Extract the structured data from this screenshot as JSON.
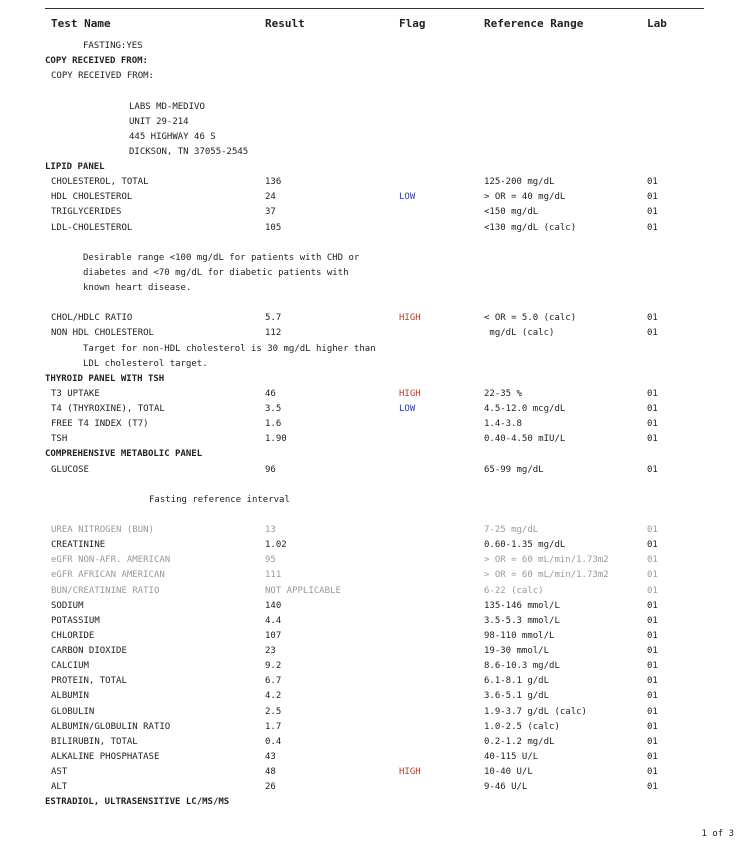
{
  "header": {
    "test_name": "Test Name",
    "result": "Result",
    "flag": "Flag",
    "reference_range": "Reference Range",
    "lab": "Lab"
  },
  "colors": {
    "high": "#c0392b",
    "low": "#2c3ea8",
    "faded": "#999999"
  },
  "rows": [
    {
      "type": "note",
      "text": "FASTING:YES"
    },
    {
      "type": "section",
      "text": "COPY RECEIVED FROM:"
    },
    {
      "type": "test",
      "name": "COPY RECEIVED FROM:"
    },
    {
      "type": "blank"
    },
    {
      "type": "addr",
      "text": "LABS MD-MEDIVO"
    },
    {
      "type": "addr",
      "text": "UNIT 29-214"
    },
    {
      "type": "addr",
      "text": "445 HIGHWAY 46 S"
    },
    {
      "type": "addr",
      "text": "DICKSON, TN 37055-2545"
    },
    {
      "type": "section",
      "text": "LIPID PANEL"
    },
    {
      "type": "test",
      "name": "CHOLESTEROL, TOTAL",
      "result": "136",
      "flag": "",
      "range": "125-200 mg/dL",
      "lab": "01"
    },
    {
      "type": "test",
      "name": "HDL CHOLESTEROL",
      "result": "24",
      "flag": "LOW",
      "range": "> OR = 40 mg/dL",
      "lab": "01"
    },
    {
      "type": "test",
      "name": "TRIGLYCERIDES",
      "result": "37",
      "flag": "",
      "range": "<150 mg/dL",
      "lab": "01"
    },
    {
      "type": "test",
      "name": "LDL-CHOLESTEROL",
      "result": "105",
      "flag": "",
      "range": "<130 mg/dL (calc)",
      "lab": "01"
    },
    {
      "type": "blank"
    },
    {
      "type": "note",
      "text": "Desirable range <100 mg/dL for patients with CHD or"
    },
    {
      "type": "note",
      "text": "diabetes and <70 mg/dL for diabetic patients with"
    },
    {
      "type": "note",
      "text": "known heart disease."
    },
    {
      "type": "blank"
    },
    {
      "type": "test",
      "name": "CHOL/HDLC RATIO",
      "result": "5.7",
      "flag": "HIGH",
      "range": "< OR = 5.0 (calc)",
      "lab": "01"
    },
    {
      "type": "test",
      "name": "NON HDL CHOLESTEROL",
      "result": "112",
      "flag": "",
      "range": " mg/dL (calc)",
      "lab": "01"
    },
    {
      "type": "note",
      "text": "Target for non-HDL cholesterol is 30 mg/dL higher than"
    },
    {
      "type": "note",
      "text": "LDL cholesterol target."
    },
    {
      "type": "section",
      "text": "THYROID PANEL WITH TSH"
    },
    {
      "type": "test",
      "name": "T3 UPTAKE",
      "result": "46",
      "flag": "HIGH",
      "range": "22-35 %",
      "lab": "01"
    },
    {
      "type": "test",
      "name": "T4 (THYROXINE), TOTAL",
      "result": "3.5",
      "flag": "LOW",
      "range": "4.5-12.0 mcg/dL",
      "lab": "01"
    },
    {
      "type": "test",
      "name": "FREE T4 INDEX (T7)",
      "result": "1.6",
      "flag": "",
      "range": "1.4-3.8",
      "lab": "01"
    },
    {
      "type": "test",
      "name": "TSH",
      "result": "1.90",
      "flag": "",
      "range": "0.40-4.50 mIU/L",
      "lab": "01"
    },
    {
      "type": "section",
      "text": "COMPREHENSIVE METABOLIC PANEL"
    },
    {
      "type": "test",
      "name": "GLUCOSE",
      "result": "96",
      "flag": "",
      "range": "65-99 mg/dL",
      "lab": "01"
    },
    {
      "type": "blank"
    },
    {
      "type": "ref",
      "text": "Fasting reference interval"
    },
    {
      "type": "blank"
    },
    {
      "type": "test",
      "faded": true,
      "name": "UREA NITROGEN (BUN)",
      "result": "13",
      "flag": "",
      "range": "7-25 mg/dL",
      "lab": "01"
    },
    {
      "type": "test",
      "name": "CREATININE",
      "result": "1.02",
      "flag": "",
      "range": "0.60-1.35 mg/dL",
      "lab": "01"
    },
    {
      "type": "test",
      "faded": true,
      "name": "eGFR NON-AFR. AMERICAN",
      "result": "95",
      "flag": "",
      "range": "> OR = 60 mL/min/1.73m2",
      "lab": "01"
    },
    {
      "type": "test",
      "faded": true,
      "name": "eGFR AFRICAN AMERICAN",
      "result": "111",
      "flag": "",
      "range": "> OR = 60 mL/min/1.73m2",
      "lab": "01"
    },
    {
      "type": "test",
      "faded": true,
      "name": "BUN/CREATININE RATIO",
      "result": "NOT APPLICABLE",
      "flag": "",
      "range": "6-22 (calc)",
      "lab": "01"
    },
    {
      "type": "test",
      "name": "SODIUM",
      "result": "140",
      "flag": "",
      "range": "135-146 mmol/L",
      "lab": "01"
    },
    {
      "type": "test",
      "name": "POTASSIUM",
      "result": "4.4",
      "flag": "",
      "range": "3.5-5.3 mmol/L",
      "lab": "01"
    },
    {
      "type": "test",
      "name": "CHLORIDE",
      "result": "107",
      "flag": "",
      "range": "98-110 mmol/L",
      "lab": "01"
    },
    {
      "type": "test",
      "name": "CARBON DIOXIDE",
      "result": "23",
      "flag": "",
      "range": "19-30 mmol/L",
      "lab": "01"
    },
    {
      "type": "test",
      "name": "CALCIUM",
      "result": "9.2",
      "flag": "",
      "range": "8.6-10.3 mg/dL",
      "lab": "01"
    },
    {
      "type": "test",
      "name": "PROTEIN, TOTAL",
      "result": "6.7",
      "flag": "",
      "range": "6.1-8.1 g/dL",
      "lab": "01"
    },
    {
      "type": "test",
      "name": "ALBUMIN",
      "result": "4.2",
      "flag": "",
      "range": "3.6-5.1 g/dL",
      "lab": "01"
    },
    {
      "type": "test",
      "name": "GLOBULIN",
      "result": "2.5",
      "flag": "",
      "range": "1.9-3.7 g/dL (calc)",
      "lab": "01"
    },
    {
      "type": "test",
      "name": "ALBUMIN/GLOBULIN RATIO",
      "result": "1.7",
      "flag": "",
      "range": "1.0-2.5 (calc)",
      "lab": "01"
    },
    {
      "type": "test",
      "name": "BILIRUBIN, TOTAL",
      "result": "0.4",
      "flag": "",
      "range": "0.2-1.2 mg/dL",
      "lab": "01"
    },
    {
      "type": "test",
      "name": "ALKALINE PHOSPHATASE",
      "result": "43",
      "flag": "",
      "range": "40-115 U/L",
      "lab": "01"
    },
    {
      "type": "test",
      "name": "AST",
      "result": "48",
      "flag": "HIGH",
      "range": "10-40 U/L",
      "lab": "01"
    },
    {
      "type": "test",
      "name": "ALT",
      "result": "26",
      "flag": "",
      "range": "9-46 U/L",
      "lab": "01"
    },
    {
      "type": "section",
      "text": "ESTRADIOL, ULTRASENSITIVE LC/MS/MS"
    }
  ],
  "pager": "1 of 3"
}
